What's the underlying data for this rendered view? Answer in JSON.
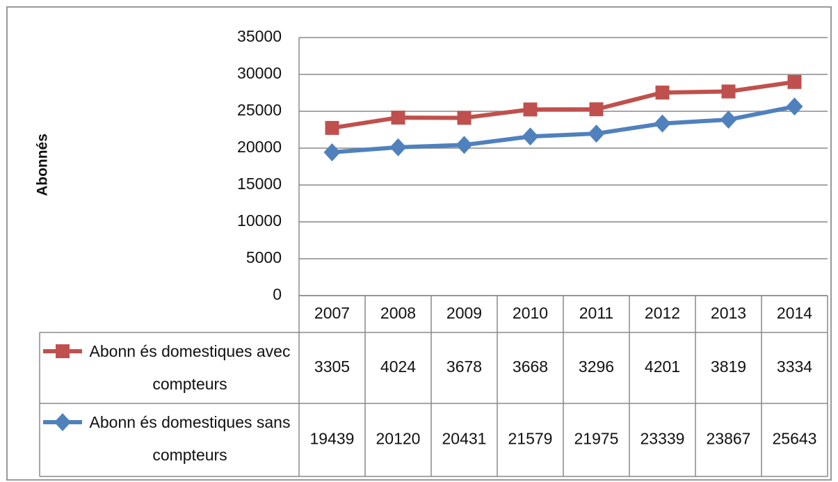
{
  "chart_data": {
    "type": "line",
    "stacked": true,
    "y_label": "Abonnés",
    "categories": [
      "2007",
      "2008",
      "2009",
      "2010",
      "2011",
      "2012",
      "2013",
      "2014"
    ],
    "series": [
      {
        "name": "Abonn és domestiques avec compteurs",
        "color": "#c0504d",
        "marker": "square",
        "values": [
          3305,
          4024,
          3678,
          3668,
          3296,
          4201,
          3819,
          3334
        ]
      },
      {
        "name": "Abonn és domestiques sans compteurs",
        "color": "#4f81bd",
        "marker": "diamond",
        "values": [
          19439,
          20120,
          20431,
          21579,
          21975,
          23339,
          23867,
          25643
        ]
      }
    ],
    "ylim": [
      0,
      35000
    ],
    "yticks": [
      0,
      5000,
      10000,
      15000,
      20000,
      25000,
      30000,
      35000
    ],
    "grid": true
  }
}
